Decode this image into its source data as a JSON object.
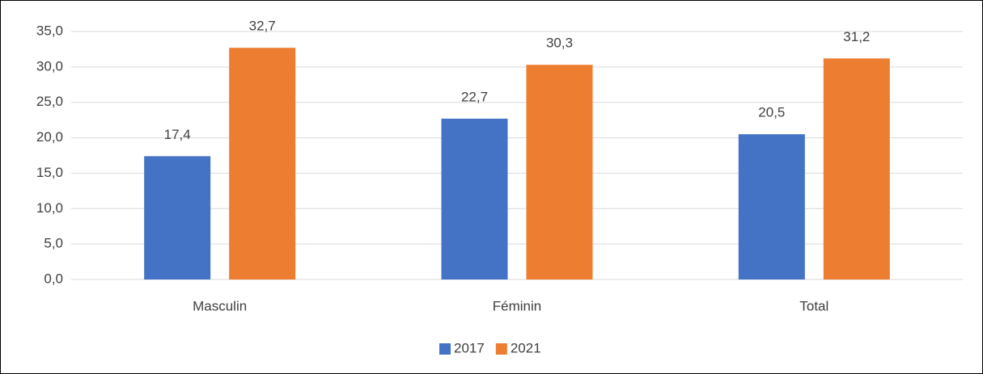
{
  "chart_data": {
    "type": "bar",
    "categories": [
      "Masculin",
      "Féminin",
      "Total"
    ],
    "series": [
      {
        "name": "2017",
        "color": "#4472c4",
        "values": [
          17.4,
          22.7,
          20.5
        ],
        "value_labels": [
          "17,4",
          "22,7",
          "20,5"
        ]
      },
      {
        "name": "2021",
        "color": "#ed7d31",
        "values": [
          32.7,
          30.3,
          31.2
        ],
        "value_labels": [
          "32,7",
          "30,3",
          "31,2"
        ]
      }
    ],
    "ylim": [
      0,
      35
    ],
    "yticks": [
      {
        "value": 0,
        "label": "0,0"
      },
      {
        "value": 5,
        "label": "5,0"
      },
      {
        "value": 10,
        "label": "10,0"
      },
      {
        "value": 15,
        "label": "15,0"
      },
      {
        "value": 20,
        "label": "20,0"
      },
      {
        "value": 25,
        "label": "25,0"
      },
      {
        "value": 30,
        "label": "30,0"
      },
      {
        "value": 35,
        "label": "35,0"
      }
    ],
    "grid": true,
    "legend": "bottom"
  }
}
